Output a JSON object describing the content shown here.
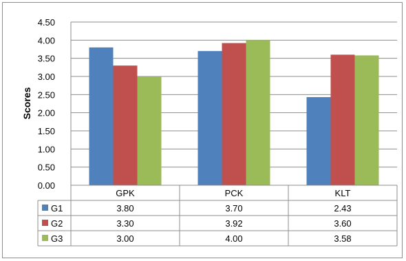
{
  "chart_data": {
    "type": "bar",
    "categories": [
      "GPK",
      "PCK",
      "KLT"
    ],
    "series": [
      {
        "name": "G1",
        "values": [
          3.8,
          3.7,
          2.43
        ],
        "color": "#4f81bd"
      },
      {
        "name": "G2",
        "values": [
          3.3,
          3.92,
          3.6
        ],
        "color": "#c0504d"
      },
      {
        "name": "G3",
        "values": [
          3.0,
          4.0,
          3.58
        ],
        "color": "#9bbb59"
      }
    ],
    "table_values": [
      [
        "3.80",
        "3.70",
        "2.43"
      ],
      [
        "3.30",
        "3.92",
        "3.60"
      ],
      [
        "3.00",
        "4.00",
        "3.58"
      ]
    ],
    "yticks": [
      "0.00",
      "0.50",
      "1.00",
      "1.50",
      "2.00",
      "2.50",
      "3.00",
      "3.50",
      "4.00",
      "4.50"
    ],
    "ylabel": "Scores",
    "xlabel": "",
    "title": "",
    "ylim": [
      0,
      4.5
    ],
    "grid": true,
    "legend": "data-table"
  }
}
